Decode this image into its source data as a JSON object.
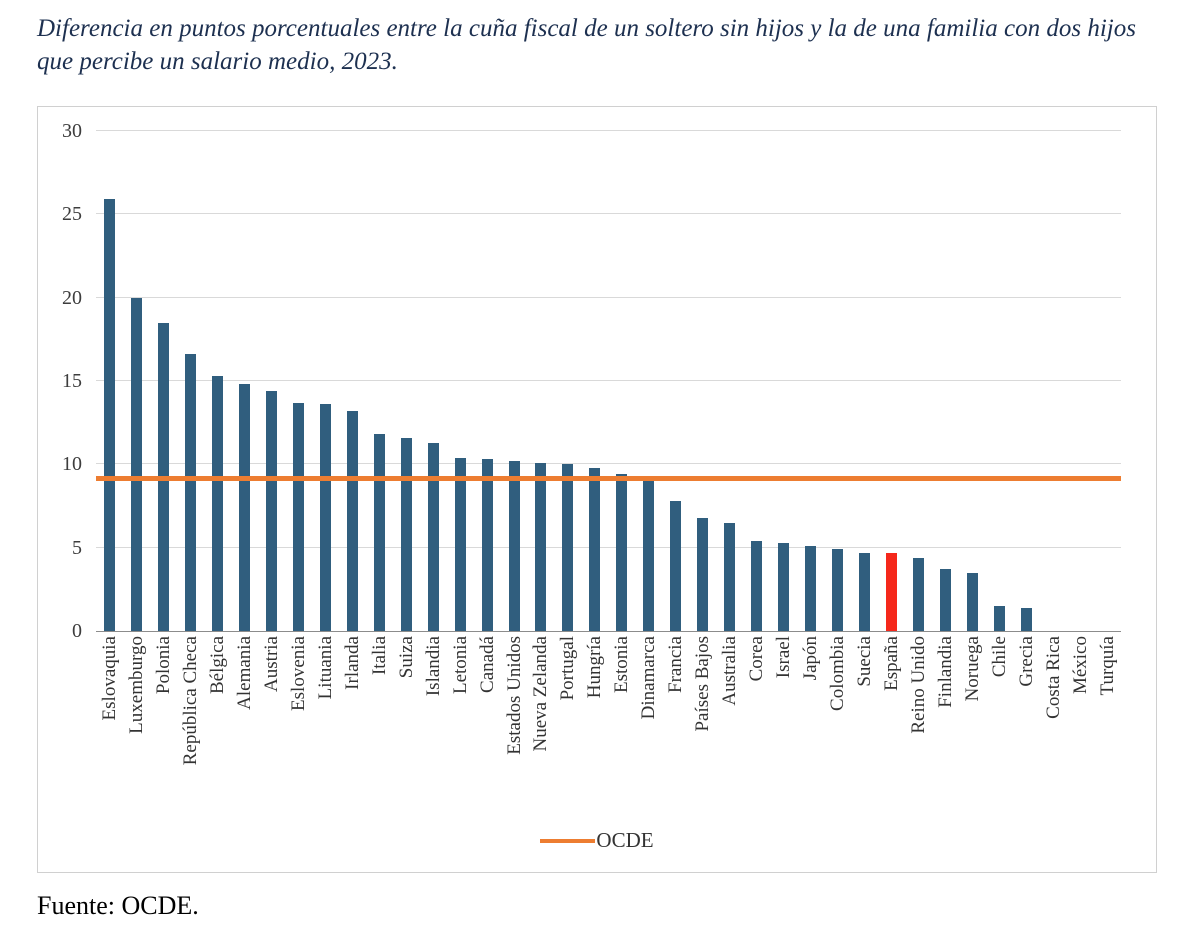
{
  "title": "Diferencia en puntos porcentuales entre la cuña fiscal de un soltero sin hijos y la de una familia con dos hijos que percibe un salario medio, 2023.",
  "source": "Fuente: OCDE.",
  "colors": {
    "bar": "#305E7E",
    "highlight": "#F5281B",
    "ocde_line": "#ED7D31",
    "gridline": "#D9D9D9"
  },
  "chart_data": {
    "type": "bar",
    "categories": [
      "Eslovaquia",
      "Luxemburgo",
      "Polonia",
      "República Checa",
      "Bélgica",
      "Alemania",
      "Austria",
      "Eslovenia",
      "Lituania",
      "Irlanda",
      "Italia",
      "Suiza",
      "Islandia",
      "Letonia",
      "Canadá",
      "Estados Unidos",
      "Nueva Zelanda",
      "Portugal",
      "Hungría",
      "Estonia",
      "Dinamarca",
      "Francia",
      "Países Bajos",
      "Australia",
      "Corea",
      "Israel",
      "Japón",
      "Colombia",
      "Suecia",
      "España",
      "Reino Unido",
      "Finlandia",
      "Noruega",
      "Chile",
      "Grecia",
      "Costa Rica",
      "México",
      "Turquía"
    ],
    "values": [
      25.9,
      20.0,
      18.5,
      16.6,
      15.3,
      14.8,
      14.4,
      13.7,
      13.6,
      13.2,
      11.8,
      11.6,
      11.3,
      10.4,
      10.3,
      10.2,
      10.1,
      10.0,
      9.8,
      9.4,
      9.0,
      7.8,
      6.8,
      6.5,
      5.4,
      5.3,
      5.1,
      4.9,
      4.7,
      4.7,
      4.4,
      3.7,
      3.5,
      1.5,
      1.4,
      0,
      0,
      0
    ],
    "highlight_category": "España",
    "reference_line": {
      "label": "OCDE",
      "value": 9.1
    },
    "title": "",
    "xlabel": "",
    "ylabel": "",
    "ylim": [
      0,
      30
    ],
    "yticks": [
      0,
      5,
      10,
      15,
      20,
      25,
      30
    ],
    "grid": true,
    "legend_position": "bottom"
  }
}
